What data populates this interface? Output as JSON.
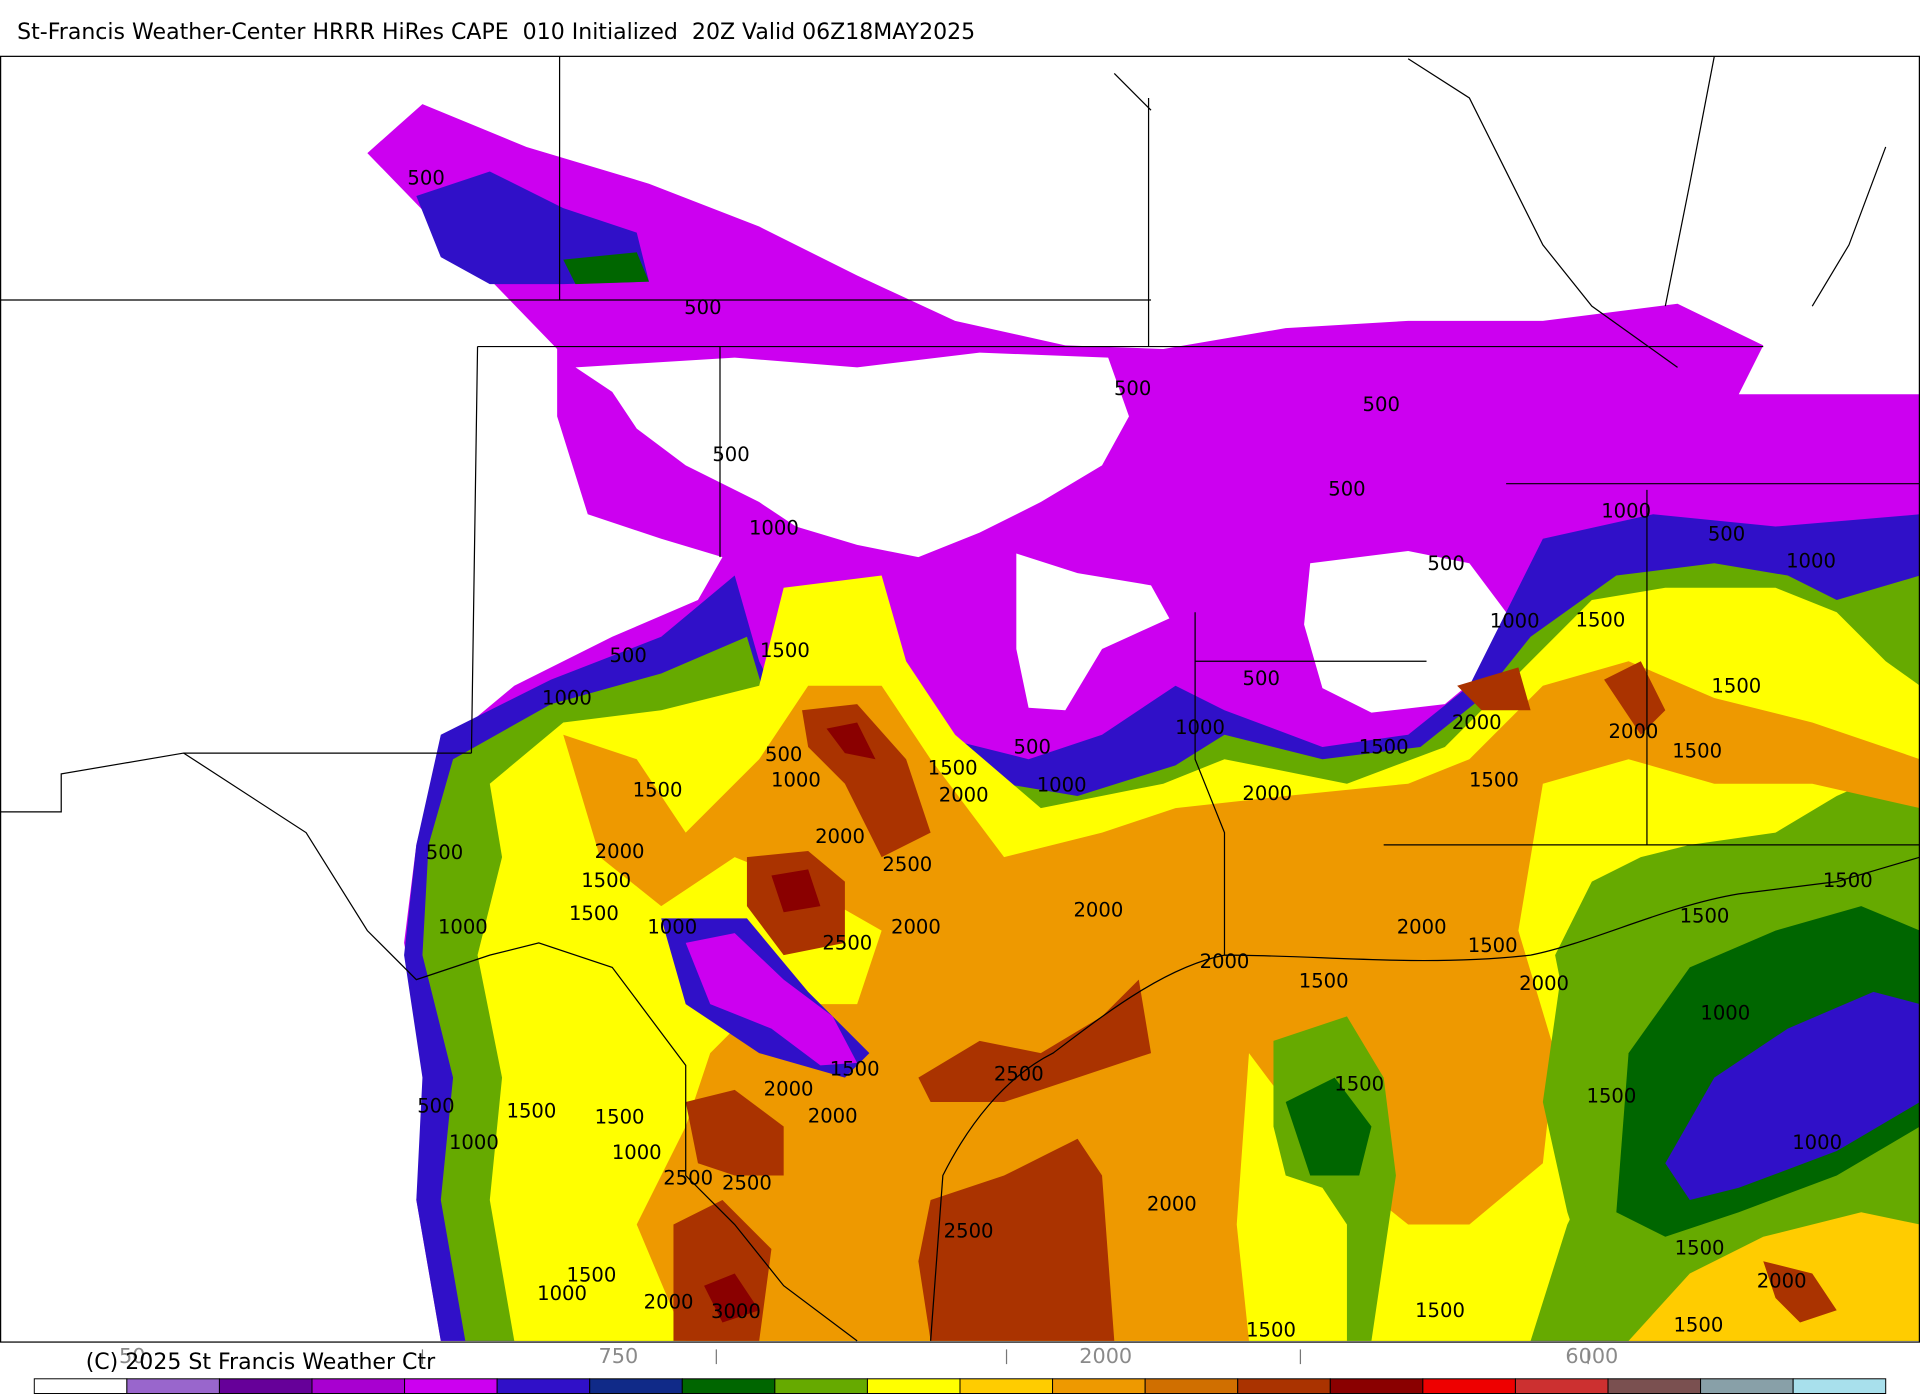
{
  "header": {
    "title": "St-Francis Weather-Center HRRR HiRes CAPE  010 Initialized  20Z Valid 06Z18MAY2025"
  },
  "map": {
    "contour_labels": [
      500,
      500,
      500,
      500,
      500,
      500,
      1000,
      1000,
      500,
      1000,
      500,
      1000,
      1500,
      500,
      1500,
      500,
      1500,
      1000,
      1000,
      2000,
      2000,
      1500,
      1500,
      500,
      500,
      1000,
      1500,
      1000,
      1500,
      1500,
      2000,
      2000,
      2000,
      500,
      2000,
      2500,
      1500,
      1500,
      2000,
      1500,
      1500,
      1000,
      1000,
      2000,
      2500,
      2000,
      1500,
      2000,
      1500,
      2000,
      1000,
      2500,
      1500,
      1500,
      2000,
      1500,
      500,
      1500,
      1500,
      2000,
      1000,
      1000,
      1000,
      2500,
      2500,
      2000,
      2500,
      1500,
      2000,
      1500,
      1000,
      2000,
      3000,
      1500,
      1500,
      1500
    ]
  },
  "colorbar": {
    "colors": [
      "#ffffff",
      "#9966cc",
      "#660099",
      "#a800d0",
      "#cc00f0",
      "#3010c8",
      "#102a88",
      "#006600",
      "#66aa00",
      "#ffff00",
      "#ffcc00",
      "#ee9900",
      "#d06f00",
      "#aa3300",
      "#8a0000",
      "#ee0000",
      "#cc3030",
      "#7a5050",
      "#88a0a8",
      "#a8e0ec"
    ],
    "tick_labels": [
      "50",
      "750",
      "2000",
      "6000"
    ]
  },
  "footer": {
    "copyright": "(C) 2025 St Francis Weather Ctr"
  }
}
